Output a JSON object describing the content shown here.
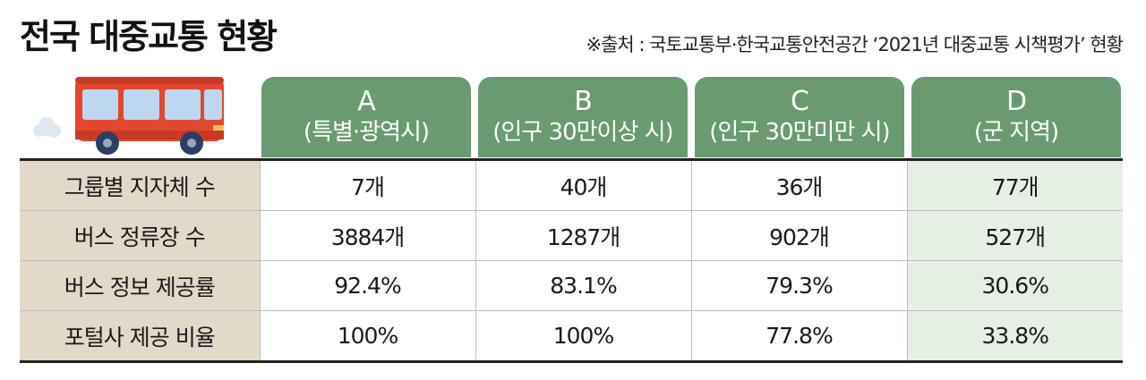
{
  "title": "전국 대중교통 현황",
  "source": "※출처 : 국토교통부·한국교통안전공간 ‘2021년 대중교통 시책평가’ 현황",
  "colors": {
    "header_green": "#6a9a70",
    "row_label_beige": "#e3d9c9",
    "highlight_column": "#e6efe3",
    "bus_red": "#e2482f"
  },
  "icon": "bus-icon",
  "columns": [
    {
      "letter": "A",
      "desc": "(특별·광역시)"
    },
    {
      "letter": "B",
      "desc": "(인구 30만이상 시)"
    },
    {
      "letter": "C",
      "desc": "(인구 30만미만 시)"
    },
    {
      "letter": "D",
      "desc": "(군 지역)"
    }
  ],
  "rows": [
    {
      "label": "그룹별 지자체 수",
      "values": [
        "7개",
        "40개",
        "36개",
        "77개"
      ]
    },
    {
      "label": "버스 정류장 수",
      "values": [
        "3884개",
        "1287개",
        "902개",
        "527개"
      ]
    },
    {
      "label": "버스 정보 제공률",
      "values": [
        "92.4%",
        "83.1%",
        "79.3%",
        "30.6%"
      ]
    },
    {
      "label": "포털사 제공 비율",
      "values": [
        "100%",
        "100%",
        "77.8%",
        "33.8%"
      ]
    }
  ]
}
